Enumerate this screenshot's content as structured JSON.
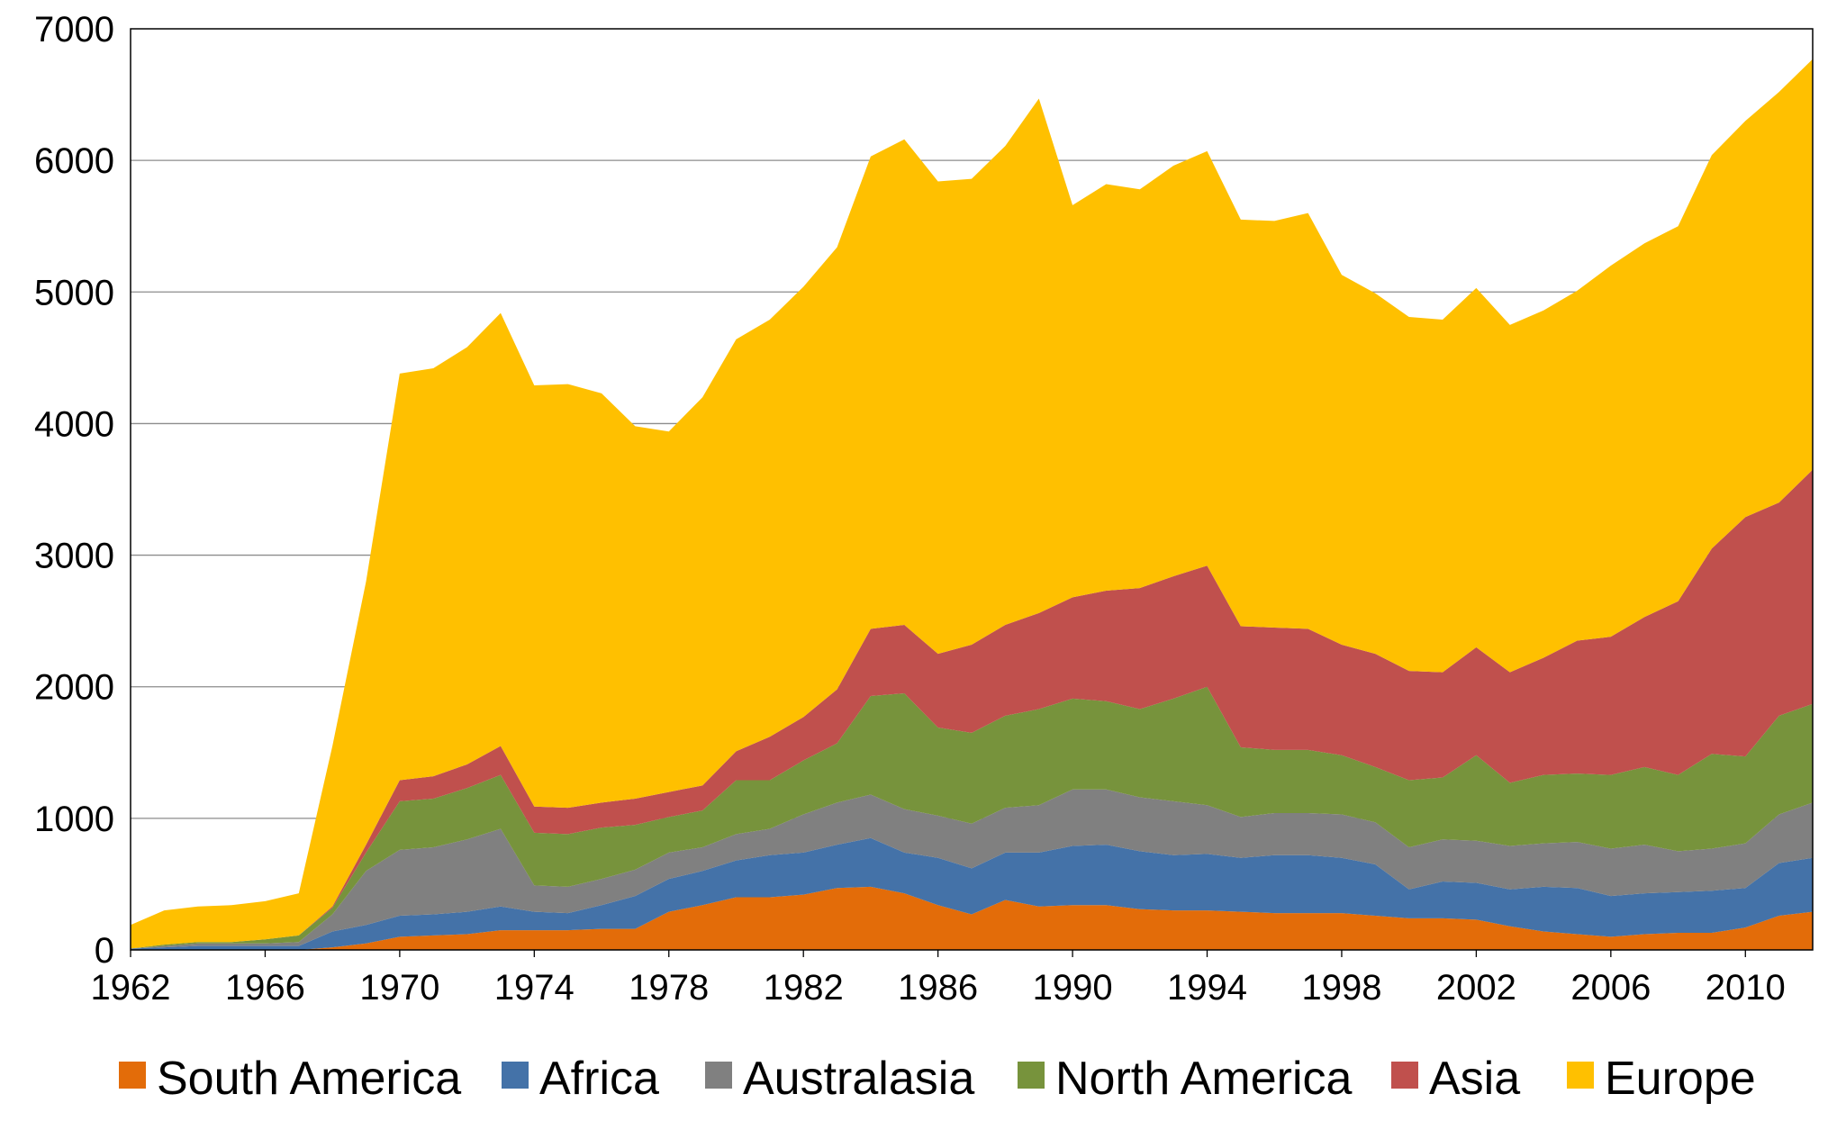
{
  "chart_data": {
    "type": "area",
    "stacked": true,
    "title": "",
    "xlabel": "",
    "ylabel": "",
    "ylim": [
      0,
      7000
    ],
    "xlim": [
      1962,
      2012
    ],
    "grid": "horizontal",
    "legend_position": "bottom",
    "x": [
      1962,
      1963,
      1964,
      1965,
      1966,
      1967,
      1968,
      1969,
      1970,
      1971,
      1972,
      1973,
      1974,
      1975,
      1976,
      1977,
      1978,
      1979,
      1980,
      1981,
      1982,
      1983,
      1984,
      1985,
      1986,
      1987,
      1988,
      1989,
      1990,
      1991,
      1992,
      1993,
      1994,
      1995,
      1996,
      1997,
      1998,
      1999,
      2000,
      2001,
      2002,
      2003,
      2004,
      2005,
      2006,
      2007,
      2008,
      2009,
      2010,
      2011,
      2012
    ],
    "x_tick_labels": [
      "1962",
      "1966",
      "1970",
      "1974",
      "1978",
      "1982",
      "1986",
      "1990",
      "1994",
      "1998",
      "2002",
      "2006",
      "2010"
    ],
    "y_tick_labels": [
      "0",
      "1000",
      "2000",
      "3000",
      "4000",
      "5000",
      "6000",
      "7000"
    ],
    "series": [
      {
        "name": "South America",
        "color": "#E36C09",
        "values": [
          0,
          0,
          0,
          0,
          0,
          0,
          20,
          50,
          100,
          110,
          120,
          150,
          150,
          150,
          160,
          160,
          290,
          340,
          400,
          400,
          420,
          470,
          480,
          430,
          340,
          270,
          380,
          330,
          340,
          340,
          310,
          300,
          300,
          290,
          280,
          280,
          280,
          260,
          240,
          240,
          230,
          180,
          140,
          120,
          100,
          120,
          130,
          130,
          170,
          260,
          290
        ]
      },
      {
        "name": "Africa",
        "color": "#4472A8",
        "values": [
          10,
          20,
          30,
          30,
          30,
          30,
          120,
          140,
          160,
          160,
          170,
          180,
          140,
          130,
          180,
          250,
          250,
          260,
          280,
          320,
          320,
          330,
          370,
          310,
          360,
          350,
          360,
          410,
          450,
          460,
          440,
          420,
          430,
          410,
          440,
          440,
          420,
          390,
          220,
          280,
          280,
          280,
          340,
          350,
          310,
          310,
          310,
          320,
          300,
          400,
          410
        ]
      },
      {
        "name": "Australasia",
        "color": "#808080",
        "values": [
          0,
          10,
          20,
          20,
          20,
          30,
          130,
          410,
          500,
          510,
          550,
          590,
          200,
          200,
          200,
          200,
          200,
          180,
          200,
          200,
          290,
          320,
          330,
          330,
          320,
          340,
          340,
          360,
          430,
          420,
          410,
          410,
          370,
          310,
          320,
          320,
          330,
          320,
          320,
          320,
          320,
          330,
          330,
          350,
          360,
          370,
          310,
          320,
          340,
          370,
          420
        ]
      },
      {
        "name": "North America",
        "color": "#77933C",
        "values": [
          0,
          10,
          10,
          10,
          30,
          50,
          50,
          140,
          370,
          370,
          390,
          410,
          400,
          400,
          390,
          340,
          270,
          280,
          410,
          370,
          410,
          450,
          750,
          880,
          670,
          690,
          700,
          730,
          690,
          670,
          670,
          780,
          900,
          530,
          480,
          480,
          450,
          420,
          510,
          470,
          650,
          480,
          520,
          520,
          560,
          590,
          580,
          720,
          660,
          750,
          750
        ]
      },
      {
        "name": "Asia",
        "color": "#C0504D",
        "values": [
          0,
          0,
          0,
          0,
          0,
          0,
          10,
          60,
          160,
          170,
          180,
          220,
          200,
          200,
          190,
          200,
          190,
          190,
          220,
          330,
          330,
          410,
          510,
          520,
          560,
          670,
          690,
          730,
          770,
          840,
          920,
          930,
          920,
          920,
          930,
          920,
          840,
          860,
          830,
          800,
          820,
          840,
          890,
          1010,
          1050,
          1140,
          1320,
          1560,
          1820,
          1620,
          1780
        ]
      },
      {
        "name": "Europe",
        "color": "#FFC000",
        "values": [
          180,
          260,
          270,
          280,
          290,
          320,
          1220,
          2000,
          3090,
          3100,
          3170,
          3290,
          3200,
          3220,
          3110,
          2830,
          2740,
          2950,
          3130,
          3170,
          3270,
          3360,
          3590,
          3690,
          3590,
          3540,
          3640,
          3910,
          2980,
          3090,
          3030,
          3120,
          3150,
          3090,
          3090,
          3160,
          2810,
          2740,
          2690,
          2680,
          2730,
          2640,
          2640,
          2660,
          2820,
          2840,
          2850,
          2990,
          3010,
          3120,
          3120
        ]
      }
    ]
  }
}
